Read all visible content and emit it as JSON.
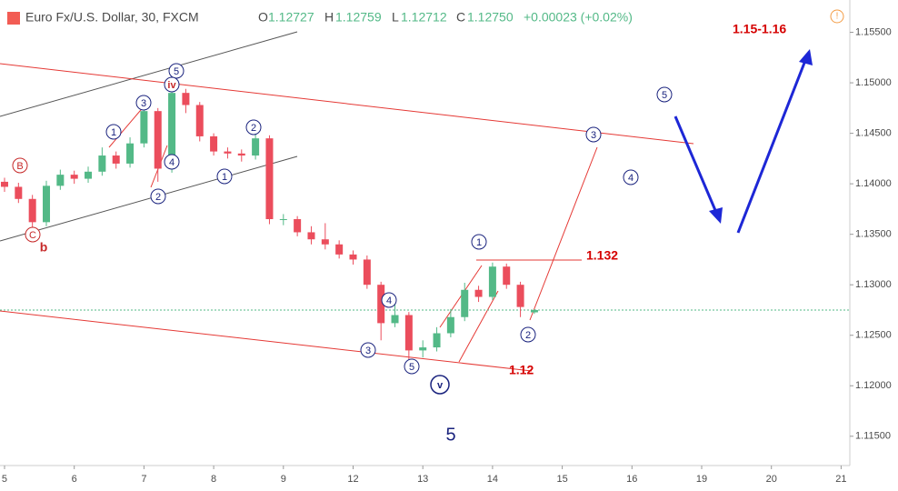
{
  "chart_data": {
    "type": "candlestick",
    "title": "Euro Fx/U.S. Dollar, 30, FXCM",
    "ohlc_header": {
      "o_label": "O",
      "o": "1.12727",
      "h_label": "H",
      "h": "1.12759",
      "l_label": "L",
      "l": "1.12712",
      "c_label": "C",
      "c": "1.12750",
      "change": "+0.00023 (+0.02%)"
    },
    "x": [
      0,
      0.2,
      0.4,
      0.6,
      0.8,
      1,
      1.2,
      1.4,
      1.6,
      1.8,
      2,
      2.2,
      2.4,
      2.6,
      2.8,
      3,
      3.2,
      3.4,
      3.6,
      3.8,
      4,
      4.2,
      4.4,
      4.6,
      4.8,
      5,
      5.2,
      5.4,
      5.6,
      5.8,
      6,
      6.2,
      6.4,
      6.6,
      6.8,
      7,
      7.2,
      7.4,
      7.6
    ],
    "open": [
      1.1402,
      1.1397,
      1.1385,
      1.1362,
      1.1398,
      1.1409,
      1.1405,
      1.1412,
      1.1428,
      1.142,
      1.144,
      1.1472,
      1.1415,
      1.149,
      1.1478,
      1.1447,
      1.1432,
      1.143,
      1.1428,
      1.1445,
      1.1365,
      1.1365,
      1.1352,
      1.1345,
      1.134,
      1.133,
      1.1325,
      1.13,
      1.1262,
      1.127,
      1.1235,
      1.1238,
      1.1252,
      1.1268,
      1.1295,
      1.1288,
      1.1318,
      1.13,
      1.12727
    ],
    "high": [
      1.1406,
      1.1401,
      1.1389,
      1.1403,
      1.1414,
      1.1413,
      1.1417,
      1.1436,
      1.1432,
      1.1446,
      1.148,
      1.1475,
      1.1499,
      1.1494,
      1.1481,
      1.145,
      1.1436,
      1.1434,
      1.1452,
      1.1448,
      1.137,
      1.1368,
      1.1358,
      1.1361,
      1.1344,
      1.1334,
      1.1329,
      1.1303,
      1.1282,
      1.1273,
      1.1245,
      1.1258,
      1.1276,
      1.1302,
      1.1299,
      1.1322,
      1.1321,
      1.1303,
      1.12759
    ],
    "low": [
      1.1392,
      1.1381,
      1.1355,
      1.1358,
      1.1394,
      1.14,
      1.1401,
      1.1408,
      1.1415,
      1.1416,
      1.1436,
      1.1402,
      1.1411,
      1.147,
      1.1442,
      1.1428,
      1.1425,
      1.1422,
      1.1424,
      1.136,
      1.1359,
      1.1348,
      1.134,
      1.1335,
      1.1326,
      1.132,
      1.1296,
      1.1245,
      1.1258,
      1.1222,
      1.1228,
      1.1234,
      1.1248,
      1.1264,
      1.1283,
      1.1285,
      1.1296,
      1.1268,
      1.12712
    ],
    "close": [
      1.1397,
      1.1385,
      1.1362,
      1.1398,
      1.1409,
      1.1405,
      1.1412,
      1.1428,
      1.142,
      1.144,
      1.1472,
      1.1415,
      1.149,
      1.1478,
      1.1447,
      1.1432,
      1.143,
      1.1428,
      1.1445,
      1.1365,
      1.1365,
      1.1352,
      1.1345,
      1.134,
      1.133,
      1.1325,
      1.13,
      1.1262,
      1.127,
      1.1235,
      1.1238,
      1.1252,
      1.1268,
      1.1295,
      1.1288,
      1.1318,
      1.13,
      1.1278,
      1.1275
    ],
    "up_color": "#53b987",
    "down_color": "#eb4d5c",
    "xlim": [
      -0.065,
      12.125
    ],
    "xticks": [
      {
        "value": 0,
        "label": "5"
      },
      {
        "value": 1,
        "label": "6"
      },
      {
        "value": 2,
        "label": "7"
      },
      {
        "value": 3,
        "label": "8"
      },
      {
        "value": 4,
        "label": "9"
      },
      {
        "value": 5,
        "label": "12"
      },
      {
        "value": 6,
        "label": "13"
      },
      {
        "value": 7,
        "label": "14"
      },
      {
        "value": 8,
        "label": "15"
      },
      {
        "value": 9,
        "label": "16"
      },
      {
        "value": 10,
        "label": "19"
      },
      {
        "value": 11,
        "label": "20"
      },
      {
        "value": 12,
        "label": "21"
      }
    ],
    "ylim": [
      1.1121,
      1.1582
    ],
    "yticks": [
      {
        "value": 1.115,
        "label": "1.11500"
      },
      {
        "value": 1.12,
        "label": "1.12000"
      },
      {
        "value": 1.125,
        "label": "1.12500"
      },
      {
        "value": 1.13,
        "label": "1.13000"
      },
      {
        "value": 1.135,
        "label": "1.13500"
      },
      {
        "value": 1.14,
        "label": "1.14000"
      },
      {
        "value": 1.145,
        "label": "1.14500"
      },
      {
        "value": 1.15,
        "label": "1.15000"
      },
      {
        "value": 1.155,
        "label": "1.15500"
      }
    ],
    "wave_labels": [
      "B",
      "C",
      "b",
      "1",
      "3",
      "5",
      "iv",
      "2",
      "4",
      "1",
      "2",
      "4",
      "3",
      "5",
      "v",
      "1",
      "2",
      "3",
      "4",
      "5",
      "5"
    ],
    "annotations": [
      "1.132",
      "1.12",
      "1.15-1.16"
    ]
  }
}
